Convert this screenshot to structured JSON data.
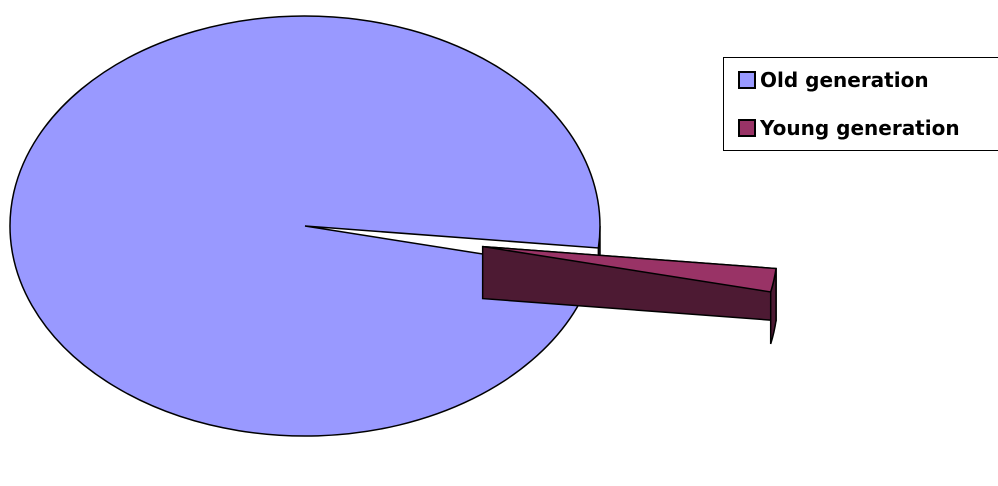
{
  "chart_data": {
    "type": "pie",
    "style": "3d-exploded",
    "title": "",
    "categories": [
      "Old generation",
      "Young generation"
    ],
    "values": [
      98.2,
      1.8
    ],
    "colors": {
      "Old generation": "#9999ff",
      "Young generation": "#993366"
    },
    "side_colors": {
      "Old generation": "#4c4c80",
      "Young generation": "#4d1a33"
    },
    "legend_position": "top-right"
  }
}
